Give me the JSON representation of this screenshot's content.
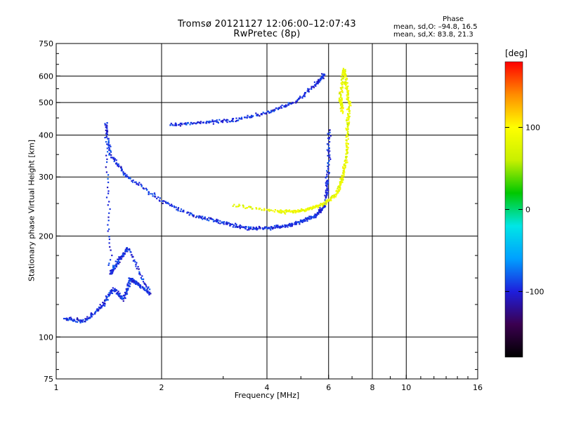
{
  "header": {
    "title_line1": "Tromsø 20121127 12:06:00–12:07:43",
    "title_line2": "RwPretec (8p)"
  },
  "stats": {
    "label": "Phase",
    "line_o": "mean, sd,O:  –94.8, 16.5",
    "line_x": "mean, sd,X:  83.8, 21.3"
  },
  "colorbar": {
    "unit": "[deg]",
    "tick_labels": [
      "100",
      "0",
      "–100"
    ],
    "tick_values": [
      100,
      0,
      -100
    ],
    "range": [
      -180,
      180
    ],
    "colors": [
      "#000000",
      "#3b0050",
      "#1e1edc",
      "#00a0ff",
      "#00e6e6",
      "#00c800",
      "#c8f000",
      "#ffff00",
      "#ff8c00",
      "#ff0000"
    ]
  },
  "chart_data": {
    "type": "scatter",
    "title": "Tromsø 20121127 12:06:00–12:07:43",
    "subtitle": "RwPretec (8p)",
    "xlabel": "Frequency [MHz]",
    "ylabel": "Stationary phase Virtual Height [km]",
    "xscale": "log",
    "yscale": "log",
    "xlim": [
      1,
      16
    ],
    "ylim": [
      75,
      750
    ],
    "x_ticks": [
      1,
      2,
      4,
      6,
      8,
      10,
      16
    ],
    "y_ticks": [
      75,
      100,
      200,
      300,
      400,
      500,
      600,
      750
    ],
    "grid": true,
    "color_dimension": "Phase [deg]",
    "series": [
      {
        "name": "O",
        "mean_phase": -94.8,
        "sd_phase": 16.5,
        "x": [
          1.05,
          1.2,
          1.35,
          1.45,
          1.55,
          1.62,
          1.7,
          1.85,
          1.6,
          1.5,
          1.42,
          1.38,
          1.42,
          1.6,
          2.0,
          2.5,
          3.0,
          3.5,
          4.0,
          4.5,
          5.0,
          5.5,
          5.85,
          5.95,
          6.0,
          2.1,
          2.6,
          3.2,
          4.0,
          4.8,
          5.5,
          5.8
        ],
        "y": [
          114,
          112,
          125,
          140,
          130,
          150,
          145,
          135,
          185,
          170,
          155,
          440,
          350,
          300,
          255,
          230,
          220,
          212,
          212,
          215,
          222,
          232,
          250,
          300,
          420,
          432,
          438,
          445,
          470,
          505,
          570,
          610
        ]
      },
      {
        "name": "X",
        "mean_phase": 83.8,
        "sd_phase": 21.3,
        "x": [
          3.2,
          4.3,
          4.8,
          5.3,
          5.8,
          6.3,
          6.55,
          6.7,
          6.75,
          6.85,
          6.7,
          6.6,
          6.45,
          6.55
        ],
        "y": [
          248,
          237,
          238,
          243,
          250,
          268,
          300,
          340,
          420,
          500,
          570,
          630,
          520,
          470
        ]
      }
    ]
  }
}
